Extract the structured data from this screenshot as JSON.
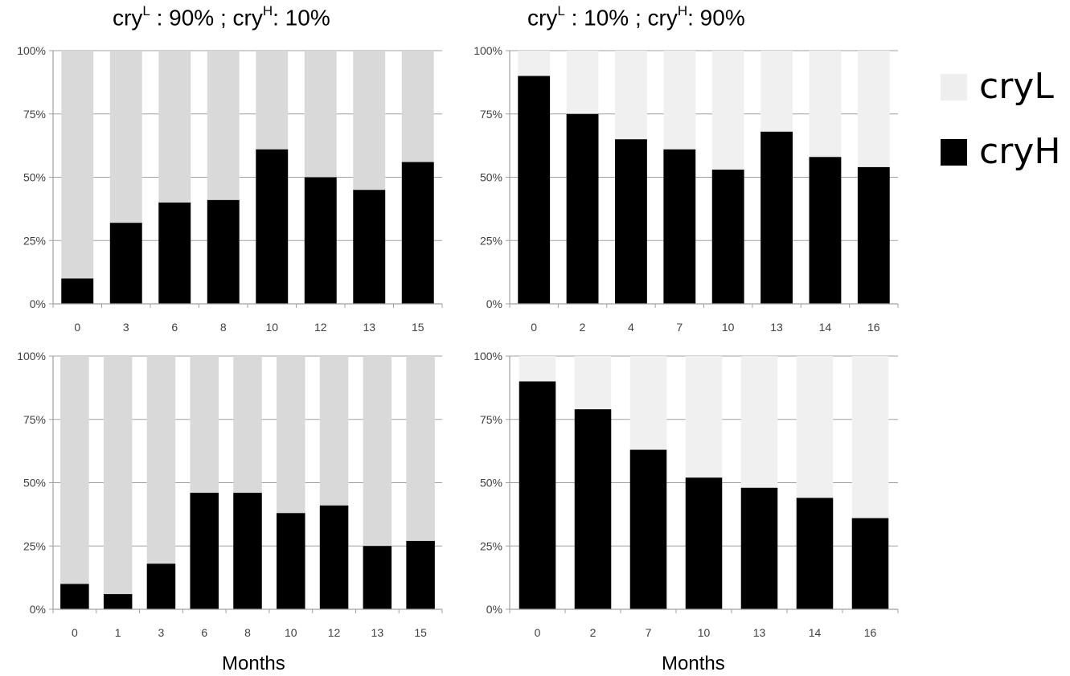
{
  "titles": {
    "left": {
      "p1": "cry",
      "s1": "L",
      "p2": " : 90% ; cry",
      "s2": "H",
      "p3": ": 10%"
    },
    "right": {
      "p1": "cry",
      "s1": "L",
      "p2": " : 10% ; cry",
      "s2": "H",
      "p3": ": 90%"
    }
  },
  "xlabels": {
    "left": "Months",
    "right": "Months"
  },
  "legend": [
    {
      "label": "cryL",
      "color": "#eeeeee"
    },
    {
      "label": "cryH",
      "color": "#000000"
    }
  ],
  "colors": {
    "cryL_bar": "#d9d9d9",
    "cryL_bar_light": "#f0f0f0",
    "cryH_bar": "#000000",
    "grid": "#a0a0a0"
  },
  "chart_data": [
    {
      "type": "bar",
      "stacked": true,
      "position": "top-left",
      "categories": [
        "0",
        "3",
        "6",
        "8",
        "10",
        "12",
        "13",
        "15"
      ],
      "series": [
        {
          "name": "cryH",
          "values": [
            10,
            32,
            40,
            41,
            61,
            50,
            45,
            56
          ]
        },
        {
          "name": "cryL",
          "values": [
            90,
            68,
            60,
            59,
            39,
            50,
            55,
            44
          ]
        }
      ],
      "yticks": [
        "0%",
        "25%",
        "50%",
        "75%",
        "100%"
      ],
      "ylim": [
        0,
        100
      ],
      "grid": true
    },
    {
      "type": "bar",
      "stacked": true,
      "position": "top-right",
      "categories": [
        "0",
        "2",
        "4",
        "7",
        "10",
        "13",
        "14",
        "16"
      ],
      "series": [
        {
          "name": "cryH",
          "values": [
            90,
            75,
            65,
            61,
            53,
            68,
            58,
            54
          ]
        },
        {
          "name": "cryL",
          "values": [
            10,
            25,
            35,
            39,
            47,
            32,
            42,
            46
          ]
        }
      ],
      "yticks": [
        "0%",
        "25%",
        "50%",
        "75%",
        "100%"
      ],
      "ylim": [
        0,
        100
      ],
      "grid": true
    },
    {
      "type": "bar",
      "stacked": true,
      "position": "bottom-left",
      "categories": [
        "0",
        "1",
        "3",
        "6",
        "8",
        "10",
        "12",
        "13",
        "15"
      ],
      "series": [
        {
          "name": "cryH",
          "values": [
            10,
            6,
            18,
            46,
            46,
            38,
            41,
            25,
            27
          ]
        },
        {
          "name": "cryL",
          "values": [
            90,
            94,
            82,
            54,
            54,
            62,
            59,
            75,
            73
          ]
        }
      ],
      "yticks": [
        "0%",
        "25%",
        "50%",
        "75%",
        "100%"
      ],
      "ylim": [
        0,
        100
      ],
      "grid": true
    },
    {
      "type": "bar",
      "stacked": true,
      "position": "bottom-right",
      "categories": [
        "0",
        "2",
        "7",
        "10",
        "13",
        "14",
        "16"
      ],
      "series": [
        {
          "name": "cryH",
          "values": [
            90,
            79,
            63,
            52,
            48,
            44,
            36
          ]
        },
        {
          "name": "cryL",
          "values": [
            10,
            21,
            37,
            48,
            52,
            56,
            64
          ]
        }
      ],
      "yticks": [
        "0%",
        "25%",
        "50%",
        "75%",
        "100%"
      ],
      "ylim": [
        0,
        100
      ],
      "grid": true
    }
  ]
}
